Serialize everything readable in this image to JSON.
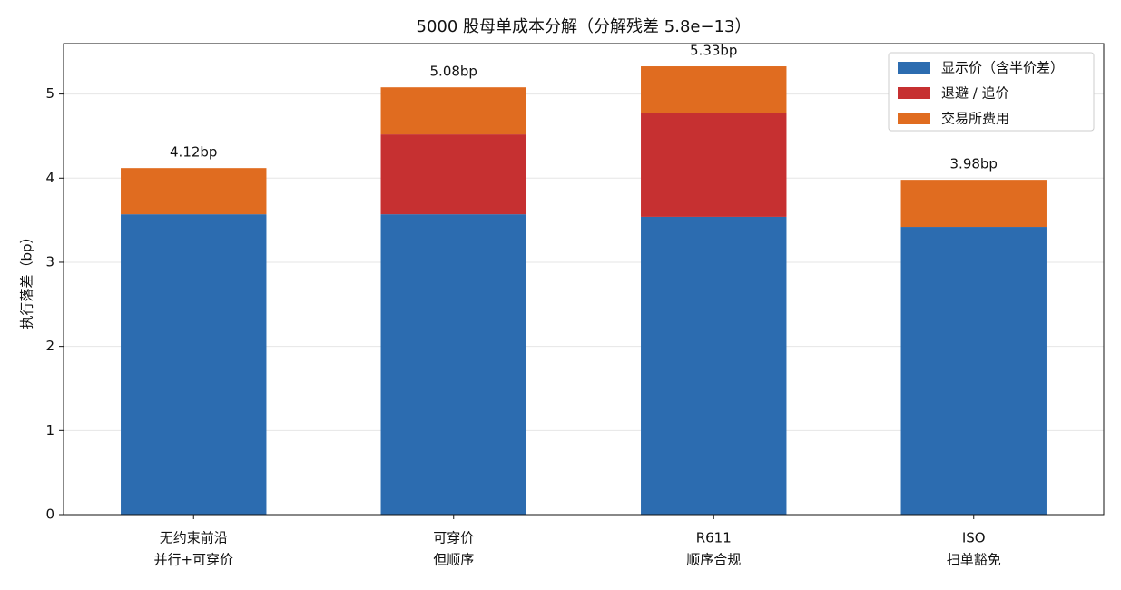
{
  "chart_data": {
    "type": "stacked_bar",
    "title": "5000 股母单成本分解（分解残差 5.8e−13）",
    "y_label": "执行落差（bp）",
    "categories": [
      [
        "无约束前沿",
        "并行+可穿价"
      ],
      [
        "可穿价",
        "但顺序"
      ],
      [
        "R611",
        "顺序合规"
      ],
      [
        "ISO",
        "扫单豁免"
      ]
    ],
    "series": [
      {
        "name": "显示价（含半价差）",
        "color": "#2c6cb0",
        "values": [
          3.57,
          3.57,
          3.54,
          3.42
        ]
      },
      {
        "name": "退避 / 追价",
        "color": "#c63031",
        "values": [
          0,
          0.95,
          1.23,
          0
        ]
      },
      {
        "name": "交易所费用",
        "color": "#e06c20",
        "values": [
          0.55,
          0.56,
          0.56,
          0.56
        ]
      }
    ],
    "total_labels": [
      "4.12bp",
      "5.08bp",
      "5.33bp",
      "3.98bp"
    ],
    "ylim": [
      0,
      5.6
    ],
    "yticks": [
      0,
      1,
      2,
      3,
      4,
      5
    ],
    "grid": true,
    "legend": "upper right"
  }
}
